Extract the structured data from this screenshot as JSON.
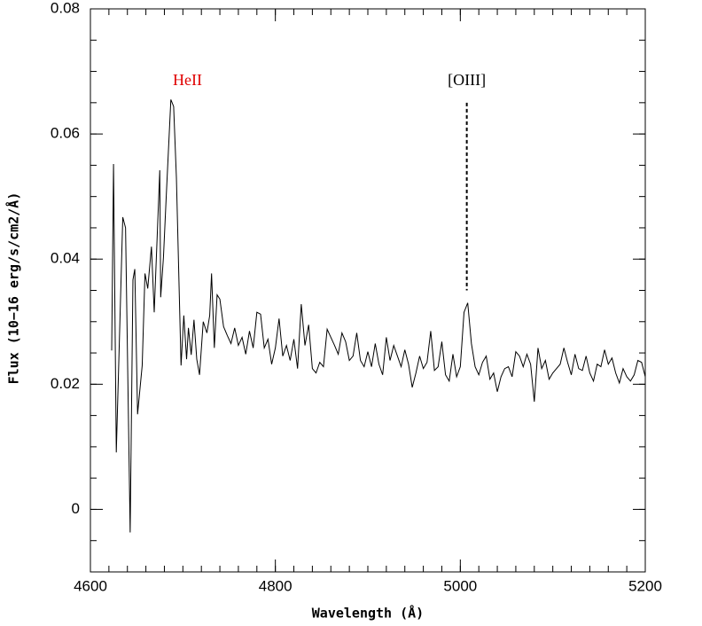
{
  "chart_data": {
    "type": "line",
    "x_label": "Wavelength (Å)",
    "y_label": "Flux (10−16 erg/s/cm2/Å)",
    "xlim": [
      4600,
      5200
    ],
    "ylim": [
      -0.01,
      0.08
    ],
    "xticks": [
      4600,
      4800,
      5000,
      5200
    ],
    "yticks": [
      0,
      0.02,
      0.04,
      0.06,
      0.08
    ],
    "x_minor_step": 20,
    "y_minor_step": 0.005,
    "color": "#000000",
    "annotations": [
      {
        "text": "HeII",
        "x": 4705,
        "color": "#e00000"
      },
      {
        "text": "[OIII]",
        "x": 5007,
        "color": "#000000",
        "line": [
          0.035,
          0.065
        ]
      }
    ],
    "x": [
      4623,
      4625,
      4628,
      4635,
      4638,
      4643,
      4646,
      4648,
      4651,
      4656,
      4659,
      4662,
      4666,
      4669,
      4675,
      4676,
      4679,
      4682,
      4687,
      4690,
      4693,
      4698,
      4701,
      4704,
      4706,
      4709,
      4712,
      4715,
      4718,
      4722,
      4726,
      4729,
      4731,
      4734,
      4737,
      4740,
      4744,
      4748,
      4752,
      4756,
      4760,
      4764,
      4768,
      4772,
      4776,
      4780,
      4784,
      4788,
      4792,
      4796,
      4800,
      4804,
      4808,
      4812,
      4816,
      4820,
      4824,
      4828,
      4832,
      4836,
      4840,
      4844,
      4848,
      4852,
      4856,
      4860,
      4864,
      4868,
      4872,
      4876,
      4880,
      4884,
      4888,
      4892,
      4896,
      4900,
      4904,
      4908,
      4912,
      4916,
      4920,
      4924,
      4928,
      4932,
      4936,
      4940,
      4944,
      4948,
      4952,
      4956,
      4960,
      4964,
      4968,
      4972,
      4976,
      4980,
      4984,
      4988,
      4992,
      4996,
      5000,
      5004,
      5008,
      5012,
      5016,
      5020,
      5024,
      5028,
      5032,
      5036,
      5040,
      5044,
      5048,
      5052,
      5056,
      5060,
      5064,
      5068,
      5072,
      5076,
      5080,
      5084,
      5088,
      5092,
      5096,
      5100,
      5104,
      5108,
      5112,
      5116,
      5120,
      5124,
      5128,
      5132,
      5136,
      5140,
      5144,
      5148,
      5152,
      5156,
      5160,
      5164,
      5168,
      5172,
      5176,
      5180,
      5184,
      5188,
      5192,
      5196,
      5200
    ],
    "values": [
      0.0254,
      0.0552,
      0.0091,
      0.0467,
      0.045,
      -0.0037,
      0.0367,
      0.0384,
      0.0152,
      0.023,
      0.0377,
      0.0353,
      0.042,
      0.0315,
      0.0542,
      0.0339,
      0.0403,
      0.05,
      0.0655,
      0.0644,
      0.053,
      0.023,
      0.031,
      0.024,
      0.029,
      0.0247,
      0.0303,
      0.024,
      0.0215,
      0.03,
      0.0282,
      0.031,
      0.0377,
      0.0258,
      0.0343,
      0.0336,
      0.0292,
      0.0278,
      0.0265,
      0.029,
      0.0262,
      0.0275,
      0.0248,
      0.0285,
      0.0258,
      0.0315,
      0.0312,
      0.0258,
      0.0272,
      0.0232,
      0.0258,
      0.0305,
      0.0245,
      0.0262,
      0.0238,
      0.0272,
      0.0225,
      0.0328,
      0.0262,
      0.0295,
      0.0225,
      0.0218,
      0.0235,
      0.0228,
      0.0288,
      0.0275,
      0.0262,
      0.0248,
      0.0282,
      0.0268,
      0.0238,
      0.0245,
      0.0282,
      0.0238,
      0.0228,
      0.0252,
      0.0228,
      0.0265,
      0.0232,
      0.0215,
      0.0275,
      0.0238,
      0.0262,
      0.0245,
      0.0228,
      0.0255,
      0.0232,
      0.0195,
      0.0218,
      0.0245,
      0.0225,
      0.0235,
      0.0285,
      0.0222,
      0.0228,
      0.0268,
      0.0215,
      0.0205,
      0.0248,
      0.0212,
      0.0228,
      0.0315,
      0.033,
      0.0265,
      0.0228,
      0.0215,
      0.0235,
      0.0245,
      0.0208,
      0.0218,
      0.0188,
      0.0212,
      0.0225,
      0.0228,
      0.0212,
      0.0252,
      0.0245,
      0.0228,
      0.0248,
      0.0232,
      0.0172,
      0.0258,
      0.0225,
      0.0238,
      0.0208,
      0.0218,
      0.0225,
      0.0232,
      0.0258,
      0.0235,
      0.0215,
      0.0248,
      0.0225,
      0.0222,
      0.0245,
      0.0218,
      0.0205,
      0.0232,
      0.0228,
      0.0255,
      0.0232,
      0.0242,
      0.0218,
      0.0202,
      0.0225,
      0.0212,
      0.0205,
      0.0215,
      0.0238,
      0.0235,
      0.0212
    ]
  }
}
